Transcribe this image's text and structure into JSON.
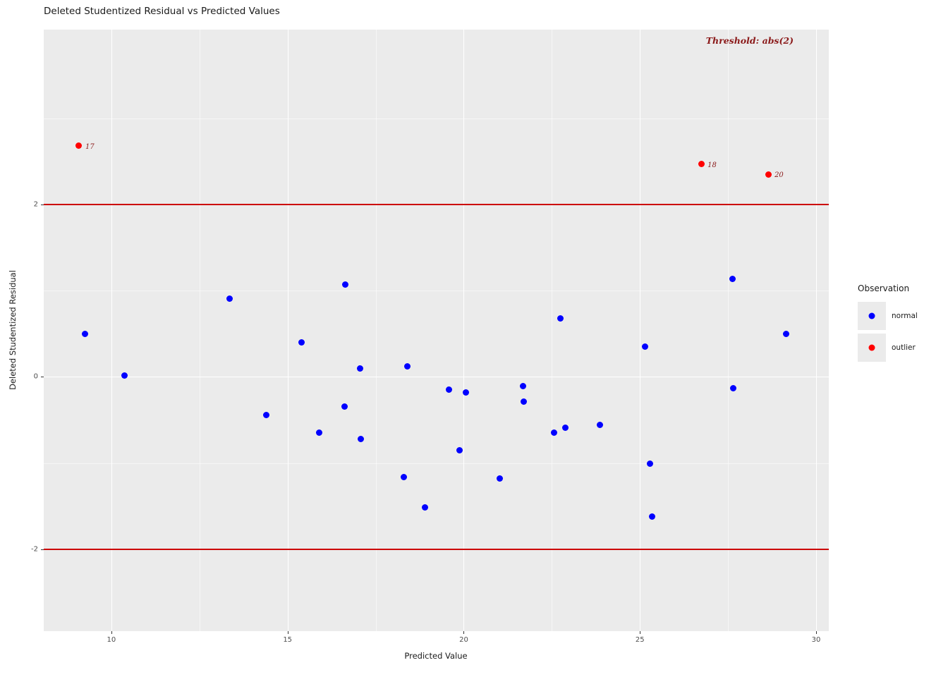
{
  "title": "Deleted Studentized Residual vs Predicted Values",
  "annotation": {
    "text": "Threshold: abs(2)",
    "color": "#8B1A1A"
  },
  "colors": {
    "panel_background": "#EBEBEB",
    "grid": "#FFFFFF",
    "threshold_line": "#CC0000",
    "normal_point": "#0000FF",
    "outlier_point": "#FF0000",
    "tick_label": "#4D4D4D"
  },
  "chart_data": {
    "type": "scatter",
    "title": "Deleted Studentized Residual vs Predicted Values",
    "xlabel": "Predicted Value",
    "ylabel": "Deleted Studentized Residual",
    "xlim": [
      8.08,
      30.36
    ],
    "ylim": [
      -2.95,
      4.03
    ],
    "x_ticks": [
      10,
      15,
      20,
      25,
      30
    ],
    "y_ticks": [
      -2,
      0,
      2
    ],
    "x_minor": [
      7.5,
      12.5,
      17.5,
      22.5,
      27.5
    ],
    "y_minor": [
      -3,
      -1,
      1,
      3
    ],
    "grid": true,
    "threshold_lines": [
      2,
      -2
    ],
    "legend": {
      "title": "Observation",
      "position": "right",
      "entries": [
        "normal",
        "outlier"
      ]
    },
    "series": [
      {
        "name": "normal",
        "color": "#0000FF",
        "points": [
          [
            9.26,
            0.5
          ],
          [
            10.38,
            0.02
          ],
          [
            13.36,
            0.91
          ],
          [
            14.4,
            -0.44
          ],
          [
            15.4,
            0.4
          ],
          [
            15.9,
            -0.65
          ],
          [
            16.64,
            1.07
          ],
          [
            16.62,
            -0.34
          ],
          [
            17.06,
            0.1
          ],
          [
            17.08,
            -0.72
          ],
          [
            18.3,
            -1.16
          ],
          [
            18.4,
            0.12
          ],
          [
            18.9,
            -1.51
          ],
          [
            19.58,
            -0.15
          ],
          [
            19.88,
            -0.85
          ],
          [
            20.06,
            -0.18
          ],
          [
            21.02,
            -1.18
          ],
          [
            21.68,
            -0.11
          ],
          [
            21.7,
            -0.29
          ],
          [
            22.56,
            -0.65
          ],
          [
            22.74,
            0.68
          ],
          [
            22.88,
            -0.59
          ],
          [
            23.86,
            -0.56
          ],
          [
            25.14,
            0.35
          ],
          [
            25.28,
            -1.01
          ],
          [
            25.34,
            -1.62
          ],
          [
            27.62,
            1.14
          ],
          [
            27.64,
            -0.13
          ],
          [
            29.14,
            0.5
          ]
        ],
        "labels": []
      },
      {
        "name": "outlier",
        "color": "#FF0000",
        "points": [
          [
            9.08,
            2.68
          ],
          [
            26.74,
            2.47
          ],
          [
            28.64,
            2.35
          ]
        ],
        "labels": [
          "17",
          "18",
          "20"
        ]
      }
    ]
  }
}
